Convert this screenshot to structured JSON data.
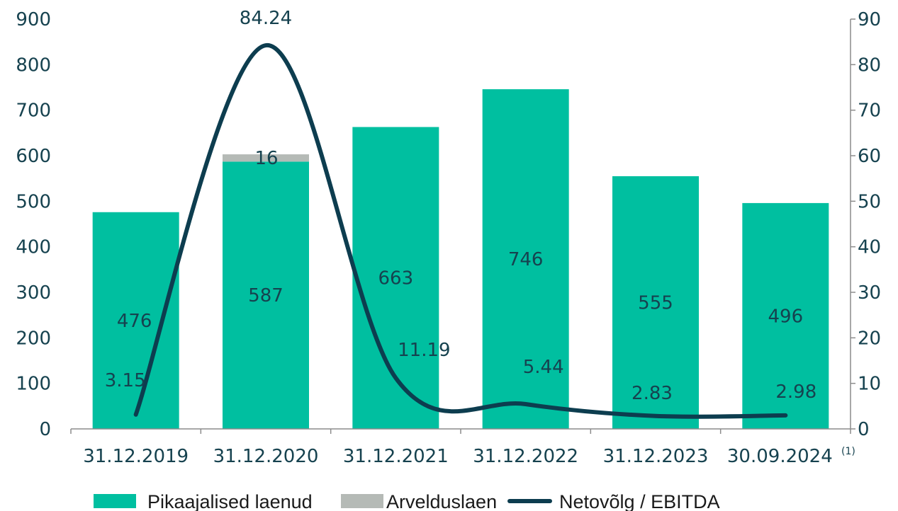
{
  "chart_data": {
    "type": "bar",
    "categories": [
      "31.12.2019",
      "31.12.2020",
      "31.12.2021",
      "31.12.2022",
      "31.12.2023",
      "30.09.2024"
    ],
    "category_footnote": "(1)",
    "y_left": {
      "min": 0,
      "max": 900,
      "step": 100
    },
    "y_right": {
      "min": 0,
      "max": 90,
      "step": 10
    },
    "series": [
      {
        "name": "Pikaajalised laenud",
        "kind": "bar",
        "axis": "left",
        "color": "#00bfa0",
        "values": [
          476,
          587,
          663,
          746,
          555,
          496
        ],
        "labels": [
          "476",
          "587",
          "663",
          "746",
          "555",
          "496"
        ]
      },
      {
        "name": "Arvelduslaen",
        "kind": "bar-stacked",
        "axis": "left",
        "color": "#b5bab6",
        "values": [
          0,
          16,
          0,
          0,
          0,
          0
        ],
        "labels": [
          "",
          "16",
          "",
          "",
          "",
          ""
        ]
      },
      {
        "name": "Netovõlg / EBITDA",
        "kind": "line",
        "axis": "right",
        "color": "#0d3d4f",
        "values": [
          3.15,
          84.24,
          11.19,
          5.44,
          2.83,
          2.98
        ],
        "labels": [
          "3.15",
          "84.24",
          "11.19",
          "5.44",
          "2.83",
          "2.98"
        ]
      }
    ],
    "legend_position": "bottom",
    "grid": false
  }
}
